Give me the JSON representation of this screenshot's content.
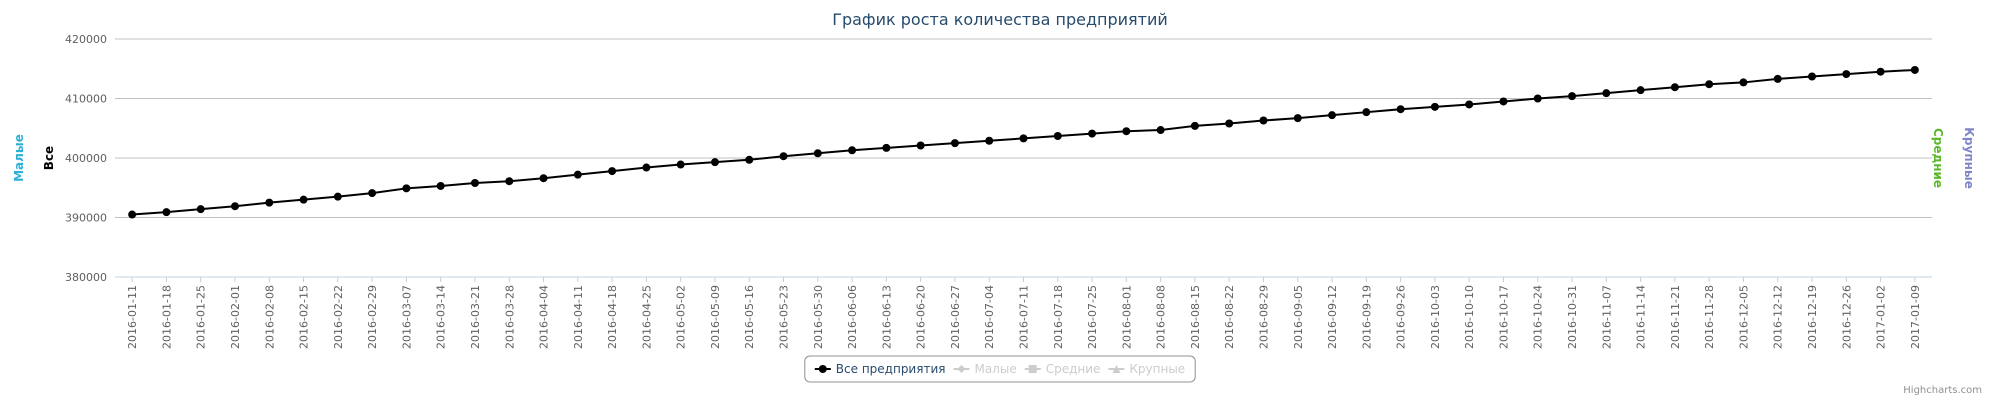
{
  "chart_data": {
    "type": "line",
    "title": "График роста количества предприятий",
    "categories": [
      "2016-01-11",
      "2016-01-18",
      "2016-01-25",
      "2016-02-01",
      "2016-02-08",
      "2016-02-15",
      "2016-02-22",
      "2016-02-29",
      "2016-03-07",
      "2016-03-14",
      "2016-03-21",
      "2016-03-28",
      "2016-04-04",
      "2016-04-11",
      "2016-04-18",
      "2016-04-25",
      "2016-05-02",
      "2016-05-09",
      "2016-05-16",
      "2016-05-23",
      "2016-05-30",
      "2016-06-06",
      "2016-06-13",
      "2016-06-20",
      "2016-06-27",
      "2016-07-04",
      "2016-07-11",
      "2016-07-18",
      "2016-07-25",
      "2016-08-01",
      "2016-08-08",
      "2016-08-15",
      "2016-08-22",
      "2016-08-29",
      "2016-09-05",
      "2016-09-12",
      "2016-09-19",
      "2016-09-26",
      "2016-10-03",
      "2016-10-10",
      "2016-10-17",
      "2016-10-24",
      "2016-10-31",
      "2016-11-07",
      "2016-11-14",
      "2016-11-21",
      "2016-11-28",
      "2016-12-05",
      "2016-12-12",
      "2016-12-19",
      "2016-12-26",
      "2017-01-02",
      "2017-01-09"
    ],
    "series": [
      {
        "name": "Все предприятия",
        "color": "#000000",
        "symbol": "circle",
        "visible": true,
        "values": [
          390500,
          390900,
          391400,
          391900,
          392500,
          393000,
          393500,
          394100,
          394900,
          395300,
          395800,
          396100,
          396600,
          397200,
          397800,
          398400,
          398900,
          399300,
          399700,
          400300,
          400800,
          401300,
          401700,
          402100,
          402500,
          402900,
          403300,
          403700,
          404100,
          404500,
          404700,
          405400,
          405800,
          406300,
          406700,
          407200,
          407700,
          408200,
          408600,
          409000,
          409500,
          410000,
          410400,
          410900,
          411400,
          411900,
          412400,
          412700,
          413300,
          413700,
          414100,
          414500,
          414800
        ]
      },
      {
        "name": "Малые",
        "color": "#2bb0d6",
        "symbol": "diamond",
        "visible": false
      },
      {
        "name": "Средние",
        "color": "#5ab82a",
        "symbol": "square",
        "visible": false
      },
      {
        "name": "Крупные",
        "color": "#8085c8",
        "symbol": "triangle",
        "visible": false
      }
    ],
    "yaxis_titles": [
      {
        "title": "Малые",
        "color": "#2bb0d6",
        "side": "left"
      },
      {
        "title": "Все",
        "color": "#000000",
        "side": "left"
      },
      {
        "title": "Средние",
        "color": "#5ab82a",
        "side": "right"
      },
      {
        "title": "Крупные",
        "color": "#8085c8",
        "side": "right"
      }
    ],
    "ylim": [
      380000,
      420000
    ],
    "yticks": [
      380000,
      390000,
      400000,
      410000,
      420000
    ],
    "grid": true,
    "legend": "bottom",
    "credits": "Highcharts.com"
  }
}
